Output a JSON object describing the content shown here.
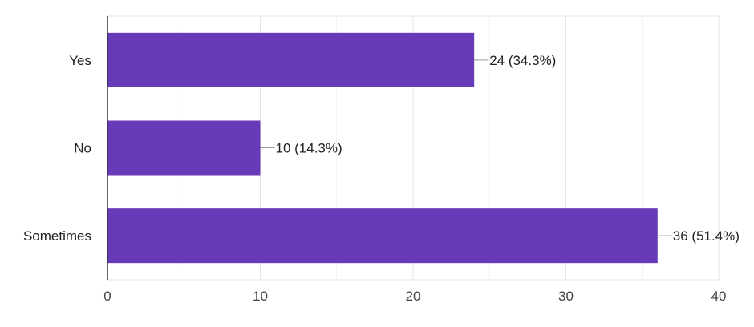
{
  "chart_data": {
    "type": "bar",
    "orientation": "horizontal",
    "categories": [
      "Yes",
      "No",
      "Sometimes"
    ],
    "values": [
      24,
      10,
      36
    ],
    "data_labels": [
      "24 (34.3%)",
      "10 (14.3%)",
      "36 (51.4%)"
    ],
    "xlim": [
      0,
      40
    ],
    "x_ticks": [
      0,
      10,
      20,
      30,
      40
    ],
    "grid": true,
    "legend": "none",
    "bar_color": "#673ab7"
  }
}
